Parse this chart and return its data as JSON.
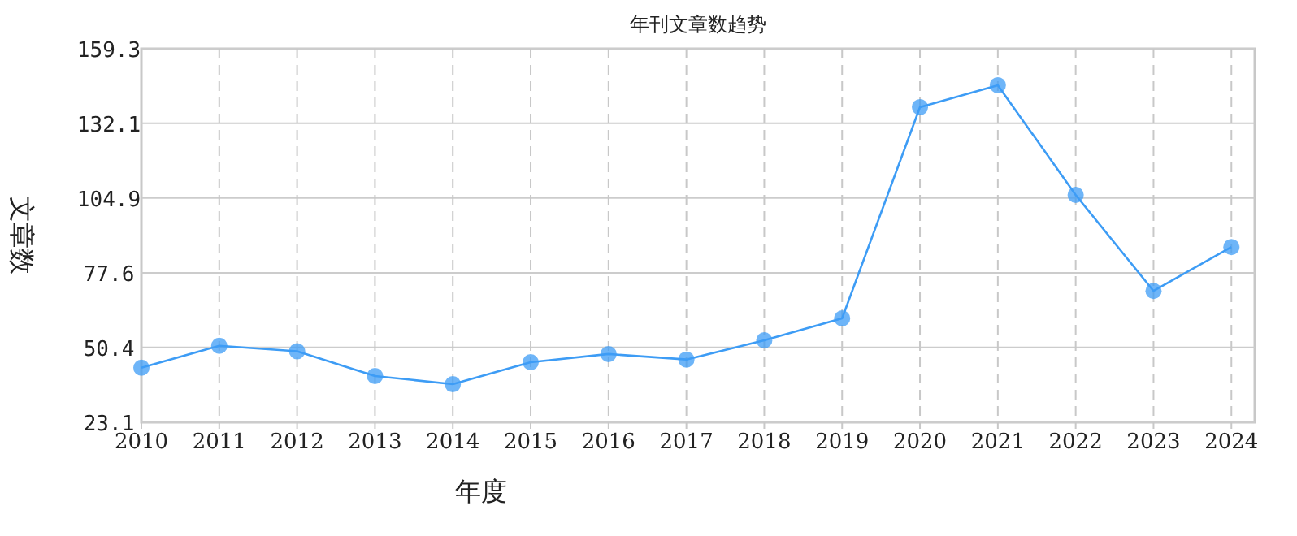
{
  "chart_data": {
    "type": "line",
    "title": "年刊文章数趋势",
    "xlabel": "年度",
    "ylabel": "文章数",
    "categories": [
      "2010",
      "2011",
      "2012",
      "2013",
      "2014",
      "2015",
      "2016",
      "2017",
      "2018",
      "2019",
      "2020",
      "2021",
      "2022",
      "2023",
      "2024"
    ],
    "series": [
      {
        "color": "#3d9cf5",
        "values": [
          43,
          51,
          49,
          40,
          37,
          45,
          48,
          46,
          53,
          61,
          138,
          146,
          106,
          71,
          87
        ]
      }
    ],
    "ylim": [
      23.1,
      159.3
    ],
    "yticks": [
      23.1,
      50.4,
      77.6,
      104.9,
      132.1,
      159.3
    ],
    "grid": true,
    "marker": "circle",
    "line_style": "solid"
  }
}
